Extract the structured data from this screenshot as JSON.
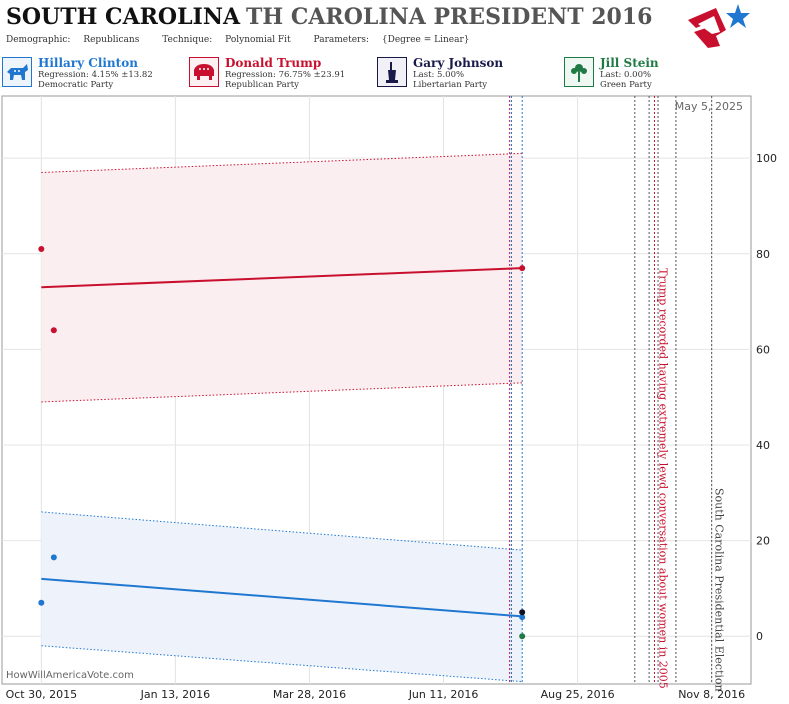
{
  "header": {
    "state": "SOUTH CAROLINA",
    "race": "TH CAROLINA PRESIDENT 2016",
    "demographic_label": "Demographic:",
    "demographic": "Republicans",
    "technique_label": "Technique:",
    "technique": "Polynomial Fit",
    "parameters_label": "Parameters:",
    "parameters": "{Degree = Linear}"
  },
  "candidates": [
    {
      "name": "Hillary Clinton",
      "line1": "Regression: 4.15% ±13.82",
      "line2": "Democratic Party",
      "color": "#1f77d0",
      "icon": "donkey-icon"
    },
    {
      "name": "Donald Trump",
      "line1": "Regression: 76.75% ±23.91",
      "line2": "Republican Party",
      "color": "#c8102e",
      "icon": "elephant-icon"
    },
    {
      "name": "Gary Johnson",
      "line1": "Last: 5.00%",
      "line2": "Libertarian Party",
      "color": "#1a1a4a",
      "icon": "statue-of-liberty-icon"
    },
    {
      "name": "Jill Stein",
      "line1": "Last: 0.00%",
      "line2": "Green Party",
      "color": "#1f7a45",
      "icon": "flower-icon"
    }
  ],
  "watermark": "HowWillAmericaVote.com",
  "date_label": "May 5, 2025",
  "chart_data": {
    "type": "scatter",
    "x_type": "date",
    "xlim": [
      "2015-10-08",
      "2016-11-30"
    ],
    "ylim": [
      -10,
      113
    ],
    "y_ticks": [
      0,
      20,
      40,
      60,
      80,
      100
    ],
    "x_ticks": [
      {
        "date": "2015-10-30",
        "label": "Oct 30, 2015"
      },
      {
        "date": "2016-01-13",
        "label": "Jan 13, 2016"
      },
      {
        "date": "2016-03-28",
        "label": "Mar 28, 2016"
      },
      {
        "date": "2016-06-11",
        "label": "Jun 11, 2016"
      },
      {
        "date": "2016-08-25",
        "label": "Aug 25, 2016"
      },
      {
        "date": "2016-11-08",
        "label": "Nov 8, 2016"
      }
    ],
    "grid": true,
    "series": [
      {
        "name": "Donald Trump",
        "color": "#c8102e",
        "band_color": "#fbeef1",
        "points": [
          {
            "x": "2015-10-30",
            "y": 81
          },
          {
            "x": "2015-11-06",
            "y": 64
          },
          {
            "x": "2016-07-25",
            "y": 77
          }
        ],
        "fit": [
          {
            "x": "2015-10-30",
            "y": 73
          },
          {
            "x": "2016-07-25",
            "y": 77
          }
        ],
        "upper": [
          {
            "x": "2015-10-30",
            "y": 97
          },
          {
            "x": "2016-07-25",
            "y": 101
          }
        ],
        "lower": [
          {
            "x": "2015-10-30",
            "y": 49
          },
          {
            "x": "2016-07-25",
            "y": 53
          }
        ]
      },
      {
        "name": "Hillary Clinton",
        "color": "#1f77d0",
        "band_color": "#eef3fb",
        "points": [
          {
            "x": "2015-10-30",
            "y": 7
          },
          {
            "x": "2015-11-06",
            "y": 16.5
          },
          {
            "x": "2016-07-25",
            "y": 4
          }
        ],
        "fit": [
          {
            "x": "2015-10-30",
            "y": 12
          },
          {
            "x": "2016-07-25",
            "y": 4.15
          }
        ],
        "upper": [
          {
            "x": "2015-10-30",
            "y": 26
          },
          {
            "x": "2016-07-25",
            "y": 18
          }
        ],
        "lower": [
          {
            "x": "2015-10-30",
            "y": -2
          },
          {
            "x": "2016-07-25",
            "y": -9.5
          }
        ]
      },
      {
        "name": "Gary Johnson",
        "color": "#111122",
        "points": [
          {
            "x": "2016-07-25",
            "y": 5
          }
        ]
      },
      {
        "name": "Jill Stein",
        "color": "#1f7a45",
        "points": [
          {
            "x": "2016-07-25",
            "y": 0
          }
        ]
      }
    ],
    "vlines": [
      {
        "x": "2016-07-18",
        "color": "#c8102e",
        "style": "dotted"
      },
      {
        "x": "2016-07-19",
        "color": "#1f77d0",
        "style": "dotted"
      },
      {
        "x": "2016-07-25",
        "color": "#1f77d0",
        "style": "dotted"
      },
      {
        "x": "2016-09-26",
        "color": "#555555",
        "style": "dotted"
      },
      {
        "x": "2016-10-04",
        "color": "#555555",
        "style": "dotted"
      },
      {
        "x": "2016-10-07",
        "color": "#c8102e",
        "style": "dotted"
      },
      {
        "x": "2016-10-09",
        "color": "#555555",
        "style": "dotted"
      },
      {
        "x": "2016-10-19",
        "color": "#555555",
        "style": "dotted"
      },
      {
        "x": "2016-11-08",
        "color": "#555555",
        "style": "dotted"
      }
    ],
    "annotations": [
      {
        "x": "2016-10-07",
        "text": "Trump recorded having extremely lewd conversation about women in 2005",
        "color": "#c8102e"
      },
      {
        "x": "2016-11-08",
        "text": "South Carolina Presidential Election",
        "color": "#444444"
      }
    ]
  }
}
